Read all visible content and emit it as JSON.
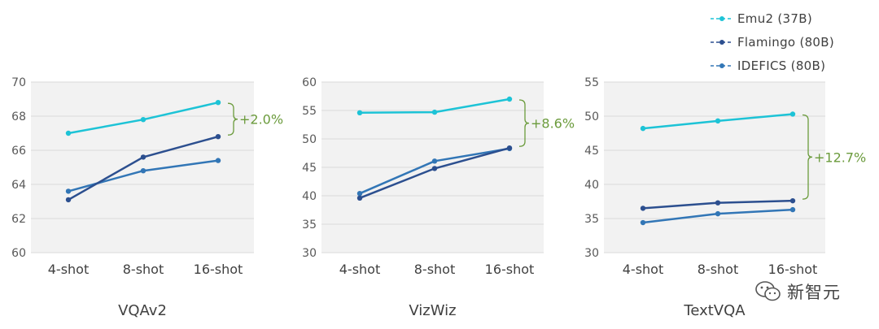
{
  "colors": {
    "emu2": "#1dc3d6",
    "flamingo": "#2c4f8f",
    "idefics": "#3276b6",
    "bracket": "#6b9b3c",
    "plot_bg": "#f2f2f2",
    "grid": "#d9d9d9"
  },
  "legend": [
    {
      "name": "Emu2 (37B)",
      "color": "#1dc3d6"
    },
    {
      "name": "Flamingo (80B)",
      "color": "#2c4f8f"
    },
    {
      "name": "IDEFICS (80B)",
      "color": "#3276b6"
    }
  ],
  "watermark": {
    "text": "新智元",
    "icon": "wechat-icon"
  },
  "chart_data": [
    {
      "type": "line",
      "title": "VQAv2",
      "categories": [
        "4-shot",
        "8-shot",
        "16-shot"
      ],
      "yticks": [
        "60",
        "62",
        "64",
        "66",
        "68",
        "70"
      ],
      "ylim": [
        60,
        70
      ],
      "grid": true,
      "series": [
        {
          "name": "Emu2 (37B)",
          "values": [
            67.0,
            67.8,
            68.8
          ]
        },
        {
          "name": "Flamingo (80B)",
          "values": [
            63.1,
            65.6,
            66.8
          ]
        },
        {
          "name": "IDEFICS (80B)",
          "values": [
            63.6,
            64.8,
            65.4
          ]
        }
      ],
      "annotation": "+2.0%"
    },
    {
      "type": "line",
      "title": "VizWiz",
      "categories": [
        "4-shot",
        "8-shot",
        "16-shot"
      ],
      "yticks": [
        "30",
        "35",
        "40",
        "45",
        "50",
        "55",
        "60"
      ],
      "ylim": [
        30,
        60
      ],
      "grid": true,
      "series": [
        {
          "name": "Emu2 (37B)",
          "values": [
            54.6,
            54.7,
            57.0
          ]
        },
        {
          "name": "Flamingo (80B)",
          "values": [
            39.6,
            44.8,
            48.4
          ]
        },
        {
          "name": "IDEFICS (80B)",
          "values": [
            40.4,
            46.1,
            48.3
          ]
        }
      ],
      "annotation": "+8.6%"
    },
    {
      "type": "line",
      "title": "TextVQA",
      "categories": [
        "4-shot",
        "8-shot",
        "16-shot"
      ],
      "yticks": [
        "30",
        "35",
        "40",
        "45",
        "50",
        "55"
      ],
      "ylim": [
        30,
        55
      ],
      "grid": true,
      "series": [
        {
          "name": "Emu2 (37B)",
          "values": [
            48.2,
            49.3,
            50.3
          ]
        },
        {
          "name": "Flamingo (80B)",
          "values": [
            36.5,
            37.3,
            37.6
          ]
        },
        {
          "name": "IDEFICS (80B)",
          "values": [
            34.4,
            35.7,
            36.3
          ]
        }
      ],
      "annotation": "+12.7%"
    }
  ]
}
